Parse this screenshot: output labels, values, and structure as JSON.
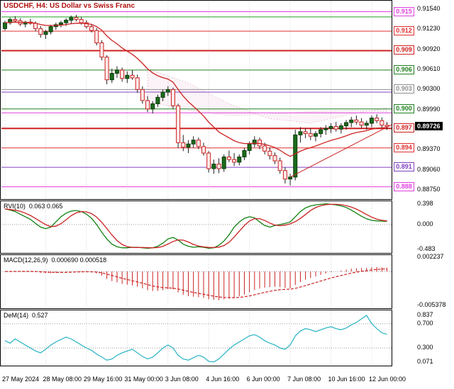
{
  "window": {
    "title": "USDCHF, H4: US Dollar vs Swiss Franc"
  },
  "colors": {
    "background": "#ffffff",
    "title": "#b01010",
    "candle_up_fill": "#1a6b1a",
    "candle_up_stroke": "#0a3a0a",
    "candle_down_fill": "#fdeaea",
    "candle_down_stroke": "#cc2020",
    "wick": "#222222",
    "ma_line": "#cc2222",
    "trendline": "#cc2222",
    "grid": "#d4d4d4",
    "cloud_fill": "rgba(220,160,190,0.12)",
    "cloud_stroke": "#d8a0be",
    "rvi_main": "#108010",
    "rvi_signal": "#cc2222",
    "macd_bars": "#cc2222",
    "macd_signal": "#cc2222",
    "dem_line": "#35b8c8",
    "level_dotted": "#999999",
    "current_price_bg": "#000000",
    "current_price_text": "#ffffff"
  },
  "price_scale": {
    "labels": [
      {
        "price": 0.9154,
        "text": "0.91540"
      },
      {
        "price": 0.9123,
        "text": "0.91230"
      },
      {
        "price": 0.9092,
        "text": "0.90920"
      },
      {
        "price": 0.9061,
        "text": "0.90610"
      },
      {
        "price": 0.903,
        "text": "0.90300"
      },
      {
        "price": 0.8999,
        "text": "0.89990"
      },
      {
        "price": 0.8937,
        "text": "0.89370"
      },
      {
        "price": 0.8906,
        "text": "0.89060"
      },
      {
        "price": 0.8875,
        "text": "0.88750"
      }
    ],
    "current": {
      "price": 0.89726,
      "text": "0.89726"
    }
  },
  "levels": [
    {
      "price": 0.915,
      "text": "0.915",
      "color": "#e040e0",
      "lw": 1
    },
    {
      "price": 0.912,
      "text": "0.912",
      "color": "#e03030",
      "lw": 1
    },
    {
      "price": 0.909,
      "text": "0.909",
      "color": "#d02020",
      "lw": 2
    },
    {
      "price": 0.906,
      "text": "0.906",
      "color": "#208020",
      "lw": 1
    },
    {
      "price": 0.903,
      "text": "0.903",
      "color": "#909090",
      "lw": 1
    },
    {
      "price": 0.9,
      "text": "0.900",
      "color": "#208020",
      "lw": 1
    },
    {
      "price": 0.897,
      "text": "0.897",
      "color": "#d02020",
      "lw": 2
    },
    {
      "price": 0.894,
      "text": "0.894",
      "color": "#e03030",
      "lw": 1
    },
    {
      "price": 0.891,
      "text": "0.891",
      "color": "#8040c0",
      "lw": 1
    },
    {
      "price": 0.888,
      "text": "0.888",
      "color": "#e040e0",
      "lw": 1
    }
  ],
  "extra_lines": [
    {
      "price": 0.9142,
      "color": "#20a020",
      "lw": 1
    },
    {
      "price": 0.9026,
      "color": "#8040c0",
      "lw": 1
    },
    {
      "price": 0.8994,
      "color": "#e040e0",
      "lw": 1
    }
  ],
  "time_axis": {
    "labels": [
      {
        "idx": 0,
        "text": "27 May 2024"
      },
      {
        "idx": 8,
        "text": "28 May 08:00"
      },
      {
        "idx": 16,
        "text": "29 May 16:00"
      },
      {
        "idx": 24,
        "text": "31 May 00:00"
      },
      {
        "idx": 32,
        "text": "3 Jun 08:00"
      },
      {
        "idx": 40,
        "text": "4 Jun 16:00"
      },
      {
        "idx": 48,
        "text": "6 Jun 00:00"
      },
      {
        "idx": 56,
        "text": "7 Jun 08:00"
      },
      {
        "idx": 64,
        "text": "10 Jun 16:00"
      },
      {
        "idx": 72,
        "text": "12 Jun 00:00"
      }
    ]
  },
  "chart_data": [
    {
      "id": "price",
      "type": "candlestick",
      "title": "USDCHF, H4: US Dollar vs Swiss Franc",
      "ylim": [
        0.8861,
        0.9167
      ],
      "ma_period": 16,
      "trendline": [
        [
          56,
          0.8895
        ],
        [
          76,
          0.8976
        ]
      ],
      "cloud": {
        "a": [
          [
            28,
            0.9062
          ],
          [
            36,
            0.904
          ],
          [
            44,
            0.9008
          ],
          [
            52,
            0.8985
          ],
          [
            60,
            0.8978
          ],
          [
            68,
            0.8992
          ],
          [
            75,
            0.9002
          ]
        ],
        "b": [
          [
            28,
            0.9012
          ],
          [
            36,
            0.8998
          ],
          [
            44,
            0.899
          ],
          [
            52,
            0.8992
          ],
          [
            60,
            0.8996
          ],
          [
            68,
            0.8998
          ],
          [
            75,
            0.8996
          ]
        ]
      },
      "candles": [
        [
          0.9124,
          0.9136,
          0.9121,
          0.9133
        ],
        [
          0.9133,
          0.9141,
          0.913,
          0.9138
        ],
        [
          0.9138,
          0.9143,
          0.9133,
          0.9136
        ],
        [
          0.9136,
          0.914,
          0.9128,
          0.9131
        ],
        [
          0.9131,
          0.9136,
          0.9126,
          0.9134
        ],
        [
          0.9134,
          0.9139,
          0.913,
          0.9132
        ],
        [
          0.9132,
          0.9135,
          0.912,
          0.9124
        ],
        [
          0.9124,
          0.9128,
          0.911,
          0.9115
        ],
        [
          0.9115,
          0.9122,
          0.9108,
          0.9119
        ],
        [
          0.9119,
          0.913,
          0.9115,
          0.9127
        ],
        [
          0.9127,
          0.9133,
          0.9122,
          0.913
        ],
        [
          0.913,
          0.9136,
          0.9126,
          0.9133
        ],
        [
          0.9133,
          0.914,
          0.9128,
          0.9137
        ],
        [
          0.9137,
          0.9144,
          0.9132,
          0.9141
        ],
        [
          0.9141,
          0.9145,
          0.9135,
          0.9138
        ],
        [
          0.9138,
          0.9142,
          0.913,
          0.9133
        ],
        [
          0.9133,
          0.9137,
          0.9124,
          0.9127
        ],
        [
          0.9127,
          0.9131,
          0.9118,
          0.9121
        ],
        [
          0.9121,
          0.9125,
          0.9098,
          0.9102
        ],
        [
          0.9102,
          0.9106,
          0.9075,
          0.908
        ],
        [
          0.908,
          0.9083,
          0.9038,
          0.9045
        ],
        [
          0.9045,
          0.9062,
          0.904,
          0.9055
        ],
        [
          0.9055,
          0.9066,
          0.9048,
          0.906
        ],
        [
          0.906,
          0.9064,
          0.9042,
          0.9047
        ],
        [
          0.9047,
          0.9058,
          0.904,
          0.9052
        ],
        [
          0.9052,
          0.906,
          0.9045,
          0.9048
        ],
        [
          0.9048,
          0.9053,
          0.9025,
          0.903
        ],
        [
          0.903,
          0.9035,
          0.9008,
          0.9013
        ],
        [
          0.9013,
          0.902,
          0.8995,
          0.9
        ],
        [
          0.9,
          0.9012,
          0.8993,
          0.9008
        ],
        [
          0.9008,
          0.9022,
          0.9003,
          0.9018
        ],
        [
          0.9018,
          0.903,
          0.9012,
          0.9026
        ],
        [
          0.9026,
          0.9035,
          0.902,
          0.903
        ],
        [
          0.903,
          0.9033,
          0.9,
          0.9005
        ],
        [
          0.9005,
          0.9008,
          0.894,
          0.8948
        ],
        [
          0.8948,
          0.896,
          0.8935,
          0.8941
        ],
        [
          0.8941,
          0.8952,
          0.8932,
          0.8946
        ],
        [
          0.8946,
          0.8958,
          0.894,
          0.8952
        ],
        [
          0.8952,
          0.8956,
          0.8938,
          0.8942
        ],
        [
          0.8942,
          0.8948,
          0.8928,
          0.8932
        ],
        [
          0.8932,
          0.8935,
          0.8902,
          0.8908
        ],
        [
          0.8908,
          0.8922,
          0.89,
          0.8915
        ],
        [
          0.8915,
          0.8924,
          0.8901,
          0.8908
        ],
        [
          0.8908,
          0.893,
          0.8903,
          0.8926
        ],
        [
          0.8926,
          0.8936,
          0.8918,
          0.8922
        ],
        [
          0.8922,
          0.8932,
          0.8912,
          0.8918
        ],
        [
          0.8918,
          0.893,
          0.8913,
          0.8926
        ],
        [
          0.8926,
          0.894,
          0.8921,
          0.8936
        ],
        [
          0.8936,
          0.895,
          0.893,
          0.8946
        ],
        [
          0.8946,
          0.8958,
          0.8941,
          0.8952
        ],
        [
          0.8952,
          0.8956,
          0.8938,
          0.8943
        ],
        [
          0.8943,
          0.8948,
          0.893,
          0.8935
        ],
        [
          0.8935,
          0.8941,
          0.8922,
          0.8928
        ],
        [
          0.8928,
          0.8933,
          0.8915,
          0.892
        ],
        [
          0.892,
          0.8925,
          0.89,
          0.8905
        ],
        [
          0.8905,
          0.891,
          0.8885,
          0.8892
        ],
        [
          0.8892,
          0.89,
          0.8882,
          0.8895
        ],
        [
          0.8895,
          0.8968,
          0.889,
          0.896
        ],
        [
          0.896,
          0.8972,
          0.8948,
          0.8965
        ],
        [
          0.8965,
          0.897,
          0.8955,
          0.8962
        ],
        [
          0.8962,
          0.897,
          0.8952,
          0.8958
        ],
        [
          0.8958,
          0.8966,
          0.895,
          0.8962
        ],
        [
          0.8962,
          0.8972,
          0.8956,
          0.8968
        ],
        [
          0.8968,
          0.8975,
          0.896,
          0.897
        ],
        [
          0.897,
          0.8978,
          0.8963,
          0.8973
        ],
        [
          0.8973,
          0.898,
          0.8965,
          0.8969
        ],
        [
          0.8969,
          0.8978,
          0.8962,
          0.8974
        ],
        [
          0.8974,
          0.8983,
          0.8968,
          0.8979
        ],
        [
          0.8979,
          0.8988,
          0.8972,
          0.8983
        ],
        [
          0.8983,
          0.899,
          0.8976,
          0.898
        ],
        [
          0.898,
          0.8986,
          0.897,
          0.8975
        ],
        [
          0.8975,
          0.8982,
          0.8968,
          0.8978
        ],
        [
          0.8978,
          0.899,
          0.8972,
          0.8986
        ],
        [
          0.8986,
          0.8992,
          0.8978,
          0.8982
        ],
        [
          0.8982,
          0.8987,
          0.897,
          0.8975
        ],
        [
          0.8975,
          0.898,
          0.8968,
          0.8973
        ]
      ]
    },
    {
      "id": "rvi",
      "type": "line",
      "title": "RVI(10)",
      "current": "0.063 0.065",
      "ylim": [
        -0.55,
        0.45
      ],
      "signal_period": 4,
      "axis_labels": [
        {
          "v": 0.398,
          "text": "0.398"
        },
        {
          "v": 0.0,
          "text": "0.000"
        },
        {
          "v": -0.483,
          "text": "-0.483"
        }
      ],
      "values": [
        0.3,
        0.28,
        0.25,
        0.2,
        0.15,
        0.1,
        0.02,
        -0.05,
        -0.08,
        -0.05,
        0.05,
        0.15,
        0.22,
        0.26,
        0.27,
        0.25,
        0.2,
        0.12,
        0.0,
        -0.15,
        -0.28,
        -0.38,
        -0.43,
        -0.45,
        -0.45,
        -0.44,
        -0.44,
        -0.45,
        -0.46,
        -0.45,
        -0.42,
        -0.36,
        -0.28,
        -0.25,
        -0.3,
        -0.38,
        -0.42,
        -0.44,
        -0.43,
        -0.44,
        -0.46,
        -0.45,
        -0.4,
        -0.32,
        -0.2,
        -0.05,
        0.05,
        0.12,
        0.15,
        0.13,
        0.05,
        -0.02,
        -0.05,
        -0.02,
        0.0,
        0.02,
        0.05,
        0.15,
        0.25,
        0.32,
        0.36,
        0.38,
        0.39,
        0.4,
        0.39,
        0.38,
        0.36,
        0.33,
        0.28,
        0.22,
        0.16,
        0.11,
        0.08,
        0.07,
        0.065,
        0.063
      ]
    },
    {
      "id": "macd",
      "type": "bar",
      "title": "MACD(12,26,9)",
      "current": "0.000690 0.000518",
      "ylim": [
        -0.0058,
        0.0026
      ],
      "fast": 12,
      "slow": 26,
      "signal": 9,
      "axis_labels": [
        {
          "v": 0.002237,
          "text": "0.002237"
        },
        {
          "v": -0.005378,
          "text": "-0.005378"
        }
      ]
    },
    {
      "id": "dem",
      "type": "line",
      "title": "DeM(14)",
      "current": "0.527",
      "ylim": [
        0.01,
        0.92
      ],
      "levels": [
        0.7,
        0.3
      ],
      "axis_labels": [
        {
          "v": 0.837,
          "text": "0.837"
        },
        {
          "v": 0.7,
          "text": "0.700"
        },
        {
          "v": 0.3,
          "text": "0.300"
        },
        {
          "v": 0.071,
          "text": "0.071"
        }
      ],
      "values": [
        0.42,
        0.38,
        0.45,
        0.4,
        0.35,
        0.3,
        0.25,
        0.22,
        0.28,
        0.35,
        0.4,
        0.44,
        0.48,
        0.45,
        0.4,
        0.35,
        0.3,
        0.26,
        0.2,
        0.15,
        0.1,
        0.12,
        0.18,
        0.22,
        0.25,
        0.28,
        0.22,
        0.16,
        0.12,
        0.15,
        0.22,
        0.3,
        0.35,
        0.3,
        0.18,
        0.12,
        0.1,
        0.14,
        0.18,
        0.15,
        0.08,
        0.071,
        0.12,
        0.2,
        0.28,
        0.35,
        0.4,
        0.45,
        0.5,
        0.52,
        0.48,
        0.42,
        0.38,
        0.35,
        0.3,
        0.28,
        0.35,
        0.5,
        0.58,
        0.62,
        0.6,
        0.57,
        0.6,
        0.63,
        0.65,
        0.62,
        0.6,
        0.63,
        0.68,
        0.72,
        0.78,
        0.837,
        0.7,
        0.62,
        0.55,
        0.527
      ]
    }
  ]
}
